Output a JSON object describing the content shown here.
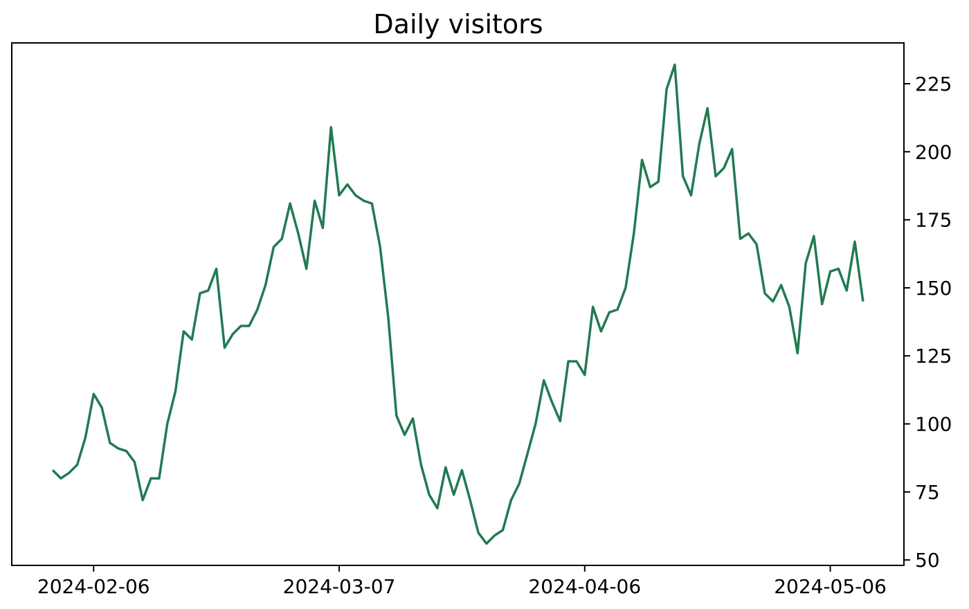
{
  "chart_data": {
    "type": "line",
    "title": "Daily visitors",
    "xlabel": "",
    "ylabel": "",
    "y_axis_side": "right",
    "grid": false,
    "legend": "none",
    "x_range": [
      "2024-01-27",
      "2024-05-15"
    ],
    "ylim": [
      48,
      240
    ],
    "x_ticks": [
      "2024-02-06",
      "2024-03-07",
      "2024-04-06",
      "2024-05-06"
    ],
    "y_ticks": [
      50,
      75,
      100,
      125,
      150,
      175,
      200,
      225
    ],
    "series": [
      {
        "color": "#217a52",
        "x": [
          "2024-02-01",
          "2024-02-02",
          "2024-02-03",
          "2024-02-04",
          "2024-02-05",
          "2024-02-06",
          "2024-02-07",
          "2024-02-08",
          "2024-02-09",
          "2024-02-10",
          "2024-02-11",
          "2024-02-12",
          "2024-02-13",
          "2024-02-14",
          "2024-02-15",
          "2024-02-16",
          "2024-02-17",
          "2024-02-18",
          "2024-02-19",
          "2024-02-20",
          "2024-02-21",
          "2024-02-22",
          "2024-02-23",
          "2024-02-24",
          "2024-02-25",
          "2024-02-26",
          "2024-02-27",
          "2024-02-28",
          "2024-02-29",
          "2024-03-01",
          "2024-03-02",
          "2024-03-03",
          "2024-03-04",
          "2024-03-05",
          "2024-03-06",
          "2024-03-07",
          "2024-03-08",
          "2024-03-09",
          "2024-03-10",
          "2024-03-11",
          "2024-03-12",
          "2024-03-13",
          "2024-03-14",
          "2024-03-15",
          "2024-03-16",
          "2024-03-17",
          "2024-03-18",
          "2024-03-19",
          "2024-03-20",
          "2024-03-21",
          "2024-03-22",
          "2024-03-23",
          "2024-03-24",
          "2024-03-25",
          "2024-03-26",
          "2024-03-27",
          "2024-03-28",
          "2024-03-29",
          "2024-03-30",
          "2024-03-31",
          "2024-04-01",
          "2024-04-02",
          "2024-04-03",
          "2024-04-04",
          "2024-04-05",
          "2024-04-06",
          "2024-04-07",
          "2024-04-08",
          "2024-04-09",
          "2024-04-10",
          "2024-04-11",
          "2024-04-12",
          "2024-04-13",
          "2024-04-14",
          "2024-04-15",
          "2024-04-16",
          "2024-04-17",
          "2024-04-18",
          "2024-04-19",
          "2024-04-20",
          "2024-04-21",
          "2024-04-22",
          "2024-04-23",
          "2024-04-24",
          "2024-04-25",
          "2024-04-26",
          "2024-04-27",
          "2024-04-28",
          "2024-04-29",
          "2024-04-30",
          "2024-05-01",
          "2024-05-02",
          "2024-05-03",
          "2024-05-04",
          "2024-05-05",
          "2024-05-06",
          "2024-05-07",
          "2024-05-08",
          "2024-05-09",
          "2024-05-10"
        ],
        "values": [
          83,
          80,
          82,
          85,
          95,
          111,
          106,
          93,
          91,
          90,
          86,
          72,
          80,
          80,
          100,
          112,
          134,
          131,
          148,
          149,
          157,
          128,
          133,
          136,
          136,
          142,
          151,
          165,
          168,
          181,
          170,
          157,
          182,
          172,
          209,
          184,
          188,
          184,
          182,
          181,
          165,
          139,
          103,
          96,
          102,
          85,
          74,
          69,
          84,
          74,
          83,
          72,
          60,
          56,
          59,
          61,
          72,
          78,
          89,
          100,
          116,
          108,
          101,
          123,
          123,
          118,
          143,
          134,
          141,
          142,
          150,
          170,
          197,
          187,
          189,
          223,
          232,
          191,
          184,
          203,
          216,
          191,
          194,
          201,
          168,
          170,
          166,
          148,
          145,
          151,
          143,
          126,
          159,
          169,
          144,
          156,
          157,
          149,
          167,
          145
        ]
      }
    ]
  }
}
